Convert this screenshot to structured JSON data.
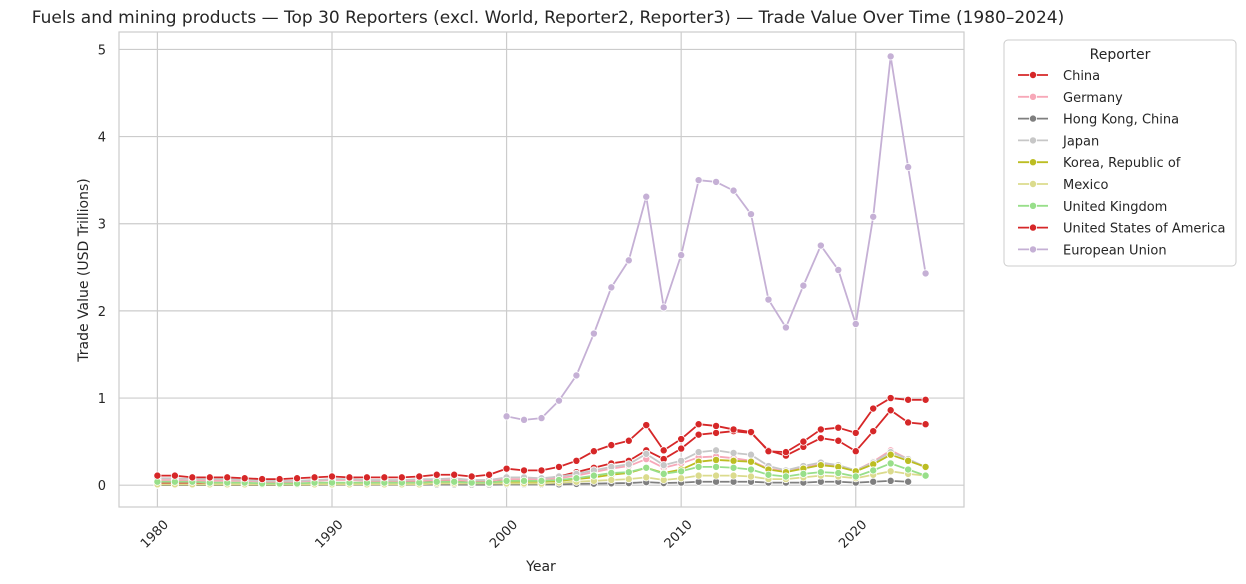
{
  "chart_data": {
    "type": "line",
    "title": "Fuels and mining products — Top 30 Reporters (excl. World, Reporter2, Reporter3) — Trade Value Over Time (1980–2024)",
    "xlabel": "Year",
    "ylabel": "Trade Value (USD Trillions)",
    "xlim": [
      1977.8,
      2026.2
    ],
    "ylim": [
      -0.25,
      5.2
    ],
    "xticks": [
      1980,
      1990,
      2000,
      2010,
      2020
    ],
    "yticks": [
      0,
      1,
      2,
      3,
      4,
      5
    ],
    "grid": true,
    "legend": {
      "title": "Reporter",
      "placement": "outside-top-right"
    },
    "series": [
      {
        "name": "China",
        "color": "#d62728",
        "x": [
          1980,
          1981,
          1982,
          1983,
          1984,
          1985,
          1986,
          1987,
          1988,
          1989,
          1990,
          1991,
          1992,
          1993,
          1994,
          1995,
          1996,
          1997,
          1998,
          1999,
          2000,
          2001,
          2002,
          2003,
          2004,
          2005,
          2006,
          2007,
          2008,
          2009,
          2010,
          2011,
          2012,
          2013,
          2014,
          2015,
          2016,
          2017,
          2018,
          2019,
          2020,
          2021,
          2022,
          2023,
          2024
        ],
        "y": [
          0.02,
          0.02,
          0.02,
          0.02,
          0.02,
          0.02,
          0.02,
          0.02,
          0.02,
          0.02,
          0.02,
          0.02,
          0.03,
          0.03,
          0.03,
          0.04,
          0.04,
          0.05,
          0.04,
          0.05,
          0.06,
          0.06,
          0.07,
          0.1,
          0.15,
          0.2,
          0.25,
          0.28,
          0.4,
          0.3,
          0.42,
          0.58,
          0.6,
          0.62,
          0.6,
          0.4,
          0.34,
          0.44,
          0.54,
          0.51,
          0.39,
          0.62,
          0.86,
          0.72,
          0.7
        ]
      },
      {
        "name": "Germany",
        "color": "#f7a8b8",
        "x": [
          1980,
          1981,
          1982,
          1983,
          1984,
          1985,
          1986,
          1987,
          1988,
          1989,
          1990,
          1991,
          1992,
          1993,
          1994,
          1995,
          1996,
          1997,
          1998,
          1999,
          2000,
          2001,
          2002,
          2003,
          2004,
          2005,
          2006,
          2007,
          2008,
          2009,
          2010,
          2011,
          2012,
          2013,
          2014,
          2015,
          2016,
          2017,
          2018,
          2019,
          2020,
          2021,
          2022,
          2023,
          2024
        ],
        "y": [
          0.06,
          0.06,
          0.05,
          0.05,
          0.05,
          0.05,
          0.04,
          0.04,
          0.04,
          0.05,
          0.06,
          0.06,
          0.05,
          0.05,
          0.05,
          0.05,
          0.06,
          0.06,
          0.05,
          0.05,
          0.07,
          0.07,
          0.07,
          0.08,
          0.11,
          0.15,
          0.19,
          0.22,
          0.3,
          0.2,
          0.25,
          0.32,
          0.33,
          0.31,
          0.28,
          0.19,
          0.16,
          0.2,
          0.24,
          0.22,
          0.17,
          0.27,
          0.4,
          0.3,
          0.2
        ]
      },
      {
        "name": "Hong Kong, China",
        "color": "#7f7f7f",
        "x": [
          1980,
          1981,
          1982,
          1983,
          1984,
          1985,
          1986,
          1987,
          1988,
          1989,
          1990,
          1991,
          1992,
          1993,
          1994,
          1995,
          1996,
          1997,
          1998,
          1999,
          2000,
          2001,
          2002,
          2003,
          2004,
          2005,
          2006,
          2007,
          2008,
          2009,
          2010,
          2011,
          2012,
          2013,
          2014,
          2015,
          2016,
          2017,
          2018,
          2019,
          2020,
          2021,
          2022,
          2023
        ],
        "y": [
          0.003,
          0.003,
          0.003,
          0.003,
          0.003,
          0.003,
          0.003,
          0.003,
          0.004,
          0.004,
          0.005,
          0.005,
          0.006,
          0.006,
          0.006,
          0.007,
          0.008,
          0.008,
          0.007,
          0.007,
          0.01,
          0.01,
          0.01,
          0.01,
          0.015,
          0.018,
          0.022,
          0.025,
          0.035,
          0.025,
          0.03,
          0.04,
          0.04,
          0.04,
          0.04,
          0.03,
          0.03,
          0.03,
          0.04,
          0.04,
          0.03,
          0.04,
          0.05,
          0.04
        ]
      },
      {
        "name": "Japan",
        "color": "#c7c7c7",
        "x": [
          1980,
          1981,
          1982,
          1983,
          1984,
          1985,
          1986,
          1987,
          1988,
          1989,
          1990,
          1991,
          1992,
          1993,
          1994,
          1995,
          1996,
          1997,
          1998,
          1999,
          2000,
          2001,
          2002,
          2003,
          2004,
          2005,
          2006,
          2007,
          2008,
          2009,
          2010,
          2011,
          2012,
          2013,
          2014,
          2015,
          2016,
          2017,
          2018,
          2019,
          2020,
          2021,
          2022,
          2023,
          2024
        ],
        "y": [
          0.08,
          0.08,
          0.07,
          0.07,
          0.07,
          0.06,
          0.05,
          0.05,
          0.05,
          0.06,
          0.07,
          0.07,
          0.06,
          0.06,
          0.06,
          0.07,
          0.07,
          0.08,
          0.06,
          0.06,
          0.09,
          0.09,
          0.08,
          0.1,
          0.13,
          0.17,
          0.21,
          0.24,
          0.36,
          0.23,
          0.28,
          0.38,
          0.4,
          0.37,
          0.35,
          0.22,
          0.17,
          0.22,
          0.26,
          0.23,
          0.17,
          0.26,
          0.38,
          0.3,
          0.21
        ]
      },
      {
        "name": "Korea, Republic of",
        "color": "#bcbd22",
        "x": [
          1980,
          1981,
          1982,
          1983,
          1984,
          1985,
          1986,
          1987,
          1988,
          1989,
          1990,
          1991,
          1992,
          1993,
          1994,
          1995,
          1996,
          1997,
          1998,
          1999,
          2000,
          2001,
          2002,
          2003,
          2004,
          2005,
          2006,
          2007,
          2008,
          2009,
          2010,
          2011,
          2012,
          2013,
          2014,
          2015,
          2016,
          2017,
          2018,
          2019,
          2020,
          2021,
          2022,
          2023,
          2024
        ],
        "y": [
          0.01,
          0.01,
          0.01,
          0.01,
          0.01,
          0.01,
          0.01,
          0.01,
          0.01,
          0.01,
          0.02,
          0.02,
          0.02,
          0.02,
          0.02,
          0.03,
          0.03,
          0.03,
          0.03,
          0.03,
          0.04,
          0.04,
          0.04,
          0.05,
          0.07,
          0.09,
          0.12,
          0.14,
          0.2,
          0.14,
          0.18,
          0.27,
          0.29,
          0.28,
          0.27,
          0.18,
          0.15,
          0.19,
          0.23,
          0.21,
          0.16,
          0.24,
          0.35,
          0.28,
          0.21
        ]
      },
      {
        "name": "Mexico",
        "color": "#dbdb8d",
        "x": [
          1980,
          1981,
          1982,
          1983,
          1984,
          1985,
          1986,
          1987,
          1988,
          1989,
          1990,
          1991,
          1992,
          1993,
          1994,
          1995,
          1996,
          1997,
          1998,
          1999,
          2000,
          2001,
          2002,
          2003,
          2004,
          2005,
          2006,
          2007,
          2008,
          2009,
          2010,
          2011,
          2012,
          2013,
          2014,
          2015,
          2016,
          2017,
          2018,
          2019,
          2020,
          2021,
          2022,
          2023,
          2024
        ],
        "y": [
          0.01,
          0.01,
          0.01,
          0.01,
          0.01,
          0.01,
          0.01,
          0.01,
          0.01,
          0.01,
          0.01,
          0.01,
          0.01,
          0.01,
          0.01,
          0.01,
          0.02,
          0.02,
          0.02,
          0.02,
          0.02,
          0.02,
          0.02,
          0.03,
          0.04,
          0.05,
          0.06,
          0.07,
          0.09,
          0.06,
          0.08,
          0.11,
          0.11,
          0.11,
          0.1,
          0.07,
          0.07,
          0.09,
          0.11,
          0.1,
          0.08,
          0.12,
          0.16,
          0.13,
          0.11
        ]
      },
      {
        "name": "United Kingdom",
        "color": "#98df8a",
        "x": [
          1980,
          1981,
          1982,
          1983,
          1984,
          1985,
          1986,
          1987,
          1988,
          1989,
          1990,
          1991,
          1992,
          1993,
          1994,
          1995,
          1996,
          1997,
          1998,
          1999,
          2000,
          2001,
          2002,
          2003,
          2004,
          2005,
          2006,
          2007,
          2008,
          2009,
          2010,
          2011,
          2012,
          2013,
          2014,
          2015,
          2016,
          2017,
          2018,
          2019,
          2020,
          2021,
          2022,
          2023,
          2024
        ],
        "y": [
          0.04,
          0.04,
          0.04,
          0.03,
          0.03,
          0.03,
          0.02,
          0.02,
          0.02,
          0.03,
          0.03,
          0.03,
          0.03,
          0.03,
          0.03,
          0.03,
          0.04,
          0.04,
          0.03,
          0.03,
          0.05,
          0.05,
          0.05,
          0.06,
          0.08,
          0.11,
          0.14,
          0.15,
          0.2,
          0.13,
          0.16,
          0.21,
          0.21,
          0.2,
          0.18,
          0.12,
          0.1,
          0.13,
          0.15,
          0.14,
          0.1,
          0.17,
          0.25,
          0.18,
          0.11
        ]
      },
      {
        "name": "United States of America",
        "color": "#d62728",
        "x": [
          1980,
          1981,
          1982,
          1983,
          1984,
          1985,
          1986,
          1987,
          1988,
          1989,
          1990,
          1991,
          1992,
          1993,
          1994,
          1995,
          1996,
          1997,
          1998,
          1999,
          2000,
          2001,
          2002,
          2003,
          2004,
          2005,
          2006,
          2007,
          2008,
          2009,
          2010,
          2011,
          2012,
          2013,
          2014,
          2015,
          2016,
          2017,
          2018,
          2019,
          2020,
          2021,
          2022,
          2023,
          2024
        ],
        "y": [
          0.11,
          0.11,
          0.09,
          0.09,
          0.09,
          0.08,
          0.07,
          0.07,
          0.08,
          0.09,
          0.1,
          0.09,
          0.09,
          0.09,
          0.09,
          0.1,
          0.12,
          0.12,
          0.1,
          0.12,
          0.19,
          0.17,
          0.17,
          0.21,
          0.28,
          0.39,
          0.46,
          0.51,
          0.69,
          0.4,
          0.53,
          0.7,
          0.68,
          0.64,
          0.61,
          0.39,
          0.38,
          0.5,
          0.64,
          0.66,
          0.6,
          0.88,
          1.0,
          0.98,
          0.98
        ]
      },
      {
        "name": "European Union",
        "color": "#c5b0d5",
        "x": [
          2000,
          2001,
          2002,
          2003,
          2004,
          2005,
          2006,
          2007,
          2008,
          2009,
          2010,
          2011,
          2012,
          2013,
          2014,
          2015,
          2016,
          2017,
          2018,
          2019,
          2020,
          2021,
          2022,
          2023,
          2024
        ],
        "y": [
          0.79,
          0.75,
          0.77,
          0.97,
          1.26,
          1.74,
          2.27,
          2.58,
          3.31,
          2.04,
          2.64,
          3.5,
          3.48,
          3.38,
          3.11,
          2.13,
          1.81,
          2.29,
          2.75,
          2.47,
          1.85,
          3.08,
          4.92,
          3.65,
          2.43
        ]
      }
    ]
  }
}
